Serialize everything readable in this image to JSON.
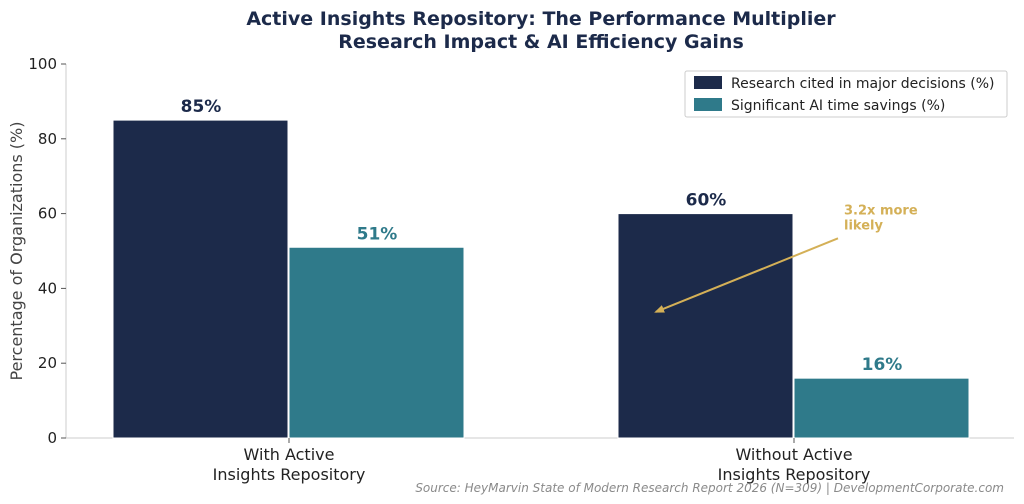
{
  "chart_data": {
    "type": "bar",
    "title": "Active Insights Repository: The Performance Multiplier",
    "subtitle": "Research Impact & AI Efficiency Gains",
    "xlabel": "",
    "ylabel": "Percentage of Organizations (%)",
    "ylim": [
      0,
      100
    ],
    "yticks": [
      0,
      20,
      40,
      60,
      80,
      100
    ],
    "grid": false,
    "legend_position": "top-right",
    "categories": [
      [
        "With Active",
        "Insights Repository"
      ],
      [
        "Without Active",
        "Insights Repository"
      ]
    ],
    "series": [
      {
        "name": "Research cited in major decisions (%)",
        "color": "#1c2a4a",
        "values": [
          85,
          60
        ],
        "labels": [
          "85%",
          "60%"
        ]
      },
      {
        "name": "Significant AI time savings (%)",
        "color": "#2f7a8a",
        "values": [
          51,
          16
        ],
        "labels": [
          "51%",
          "16%"
        ]
      }
    ],
    "annotation": {
      "text": [
        "3.2x more",
        "likely"
      ],
      "color": "#d4b057",
      "arrow_points_to": {
        "category": 1,
        "y": 34
      },
      "text_anchor": {
        "category": 1,
        "y": 59
      }
    },
    "source": "Source: HeyMarvin State of Modern Research Report 2026 (N=309) | DevelopmentCorporate.com"
  }
}
